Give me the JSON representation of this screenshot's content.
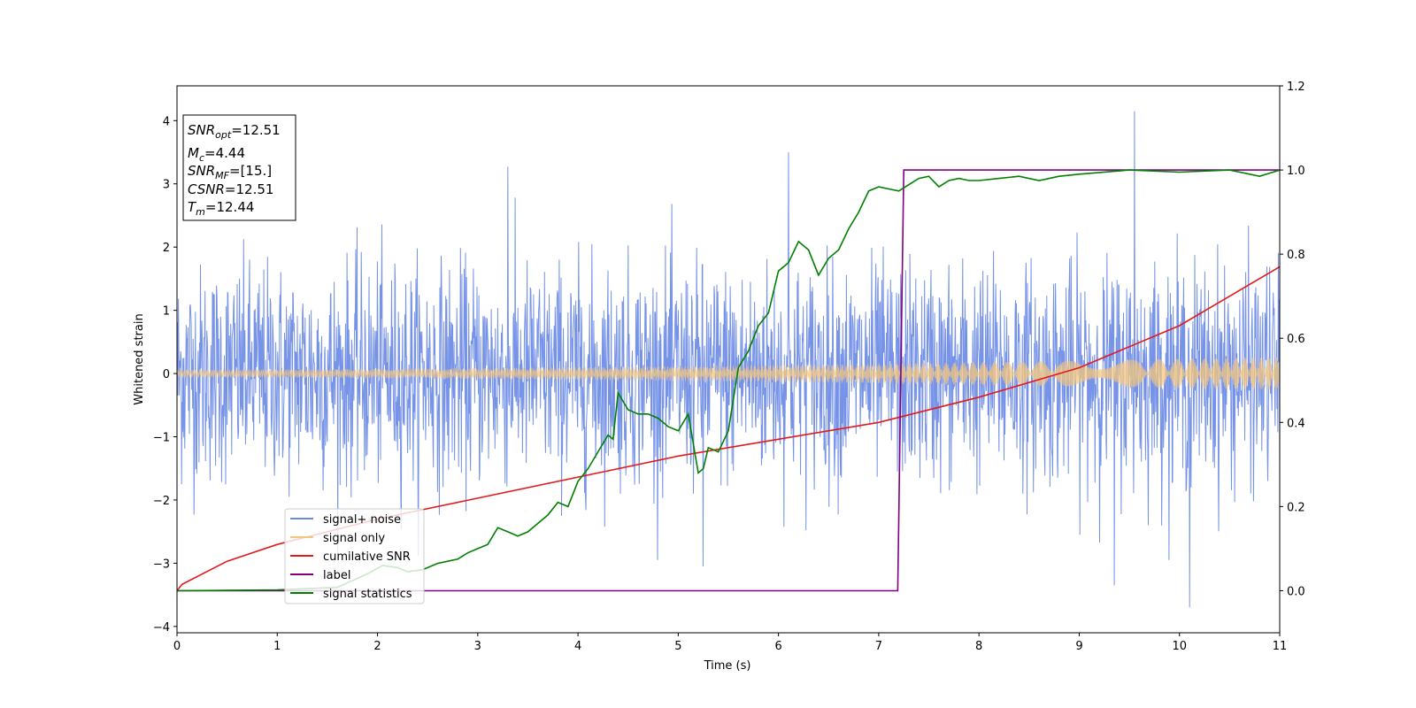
{
  "chart_data": {
    "type": "line",
    "xlabel": "Time (s)",
    "ylabel_left": "Whitened strain",
    "ylabel_right": "",
    "xlim": [
      0,
      11
    ],
    "ylim_left": [
      -4.1,
      4.55
    ],
    "ylim_right": [
      -0.1,
      1.2
    ],
    "x_ticks": [
      "0",
      "1",
      "2",
      "3",
      "4",
      "5",
      "6",
      "7",
      "8",
      "9",
      "10",
      "11"
    ],
    "y_ticks_left": [
      "−4",
      "−3",
      "−2",
      "−1",
      "0",
      "1",
      "2",
      "3",
      "4"
    ],
    "y_ticks_right": [
      "0.0",
      "0.2",
      "0.4",
      "0.6",
      "0.8",
      "1.0",
      "1.2"
    ],
    "grid": false,
    "legend_position": "lower-left",
    "annotation_lines": [
      {
        "sym": "SNR",
        "sub": "opt",
        "val": "=12.51"
      },
      {
        "sym": "M",
        "sub": "c",
        "val": "=4.44"
      },
      {
        "sym": "SNR",
        "sub": "MF",
        "val": "=[15.]"
      },
      {
        "sym": "CSNR",
        "sub": "",
        "val": "=12.51"
      },
      {
        "sym": "T",
        "sub": "m",
        "val": "=12.44"
      }
    ],
    "series": [
      {
        "name": "signal+ noise",
        "axis": "left",
        "color": "#6a8ae6",
        "style": "noise",
        "std": 0.85,
        "spikes": [
          [
            9.55,
            4.15
          ],
          [
            10.1,
            -3.7
          ],
          [
            6.1,
            3.5
          ],
          [
            3.3,
            3.27
          ],
          [
            9.35,
            -3.35
          ],
          [
            5.25,
            -3.05
          ]
        ]
      },
      {
        "name": "signal only",
        "axis": "left",
        "color": "#f5c77e",
        "style": "chirp",
        "amp_start": 0.06,
        "amp_end": 0.26
      },
      {
        "name": "cumilative SNR",
        "axis": "right",
        "color": "#e31a1c",
        "x": [
          0,
          0.05,
          0.5,
          1,
          2,
          3,
          4,
          5,
          6,
          7,
          8,
          9,
          10,
          10.5,
          11
        ],
        "y": [
          0.0,
          0.015,
          0.07,
          0.11,
          0.17,
          0.22,
          0.27,
          0.32,
          0.36,
          0.4,
          0.46,
          0.53,
          0.63,
          0.7,
          0.77
        ]
      },
      {
        "name": "label",
        "axis": "right",
        "color": "#800080",
        "x": [
          0,
          7.19,
          7.25,
          11
        ],
        "y": [
          0,
          0,
          1,
          1
        ]
      },
      {
        "name": "signal statistics",
        "axis": "right",
        "color": "#008000",
        "x": [
          0,
          1,
          1.6,
          1.9,
          2.05,
          2.2,
          2.3,
          2.45,
          2.6,
          2.7,
          2.8,
          2.9,
          3.0,
          3.1,
          3.2,
          3.3,
          3.4,
          3.5,
          3.6,
          3.7,
          3.8,
          3.9,
          4.0,
          4.1,
          4.2,
          4.3,
          4.35,
          4.4,
          4.5,
          4.6,
          4.7,
          4.8,
          4.9,
          5.0,
          5.1,
          5.2,
          5.25,
          5.3,
          5.4,
          5.5,
          5.6,
          5.7,
          5.8,
          5.9,
          6.0,
          6.1,
          6.2,
          6.3,
          6.4,
          6.5,
          6.6,
          6.7,
          6.8,
          6.9,
          7.0,
          7.1,
          7.2,
          7.3,
          7.4,
          7.5,
          7.6,
          7.7,
          7.8,
          7.9,
          8.0,
          8.2,
          8.4,
          8.6,
          8.8,
          9.0,
          9.5,
          10.0,
          10.5,
          10.8,
          11.0
        ],
        "y": [
          0.0,
          0.002,
          0.008,
          0.04,
          0.06,
          0.055,
          0.045,
          0.05,
          0.065,
          0.07,
          0.075,
          0.09,
          0.1,
          0.11,
          0.15,
          0.14,
          0.13,
          0.14,
          0.16,
          0.18,
          0.21,
          0.2,
          0.26,
          0.29,
          0.33,
          0.37,
          0.36,
          0.47,
          0.43,
          0.42,
          0.42,
          0.41,
          0.39,
          0.38,
          0.42,
          0.28,
          0.29,
          0.34,
          0.33,
          0.38,
          0.53,
          0.57,
          0.63,
          0.66,
          0.76,
          0.78,
          0.83,
          0.81,
          0.75,
          0.79,
          0.81,
          0.86,
          0.9,
          0.95,
          0.96,
          0.955,
          0.95,
          0.965,
          0.98,
          0.985,
          0.96,
          0.975,
          0.98,
          0.975,
          0.975,
          0.98,
          0.985,
          0.975,
          0.985,
          0.99,
          1.0,
          0.995,
          1.0,
          0.985,
          1.0
        ]
      }
    ]
  }
}
